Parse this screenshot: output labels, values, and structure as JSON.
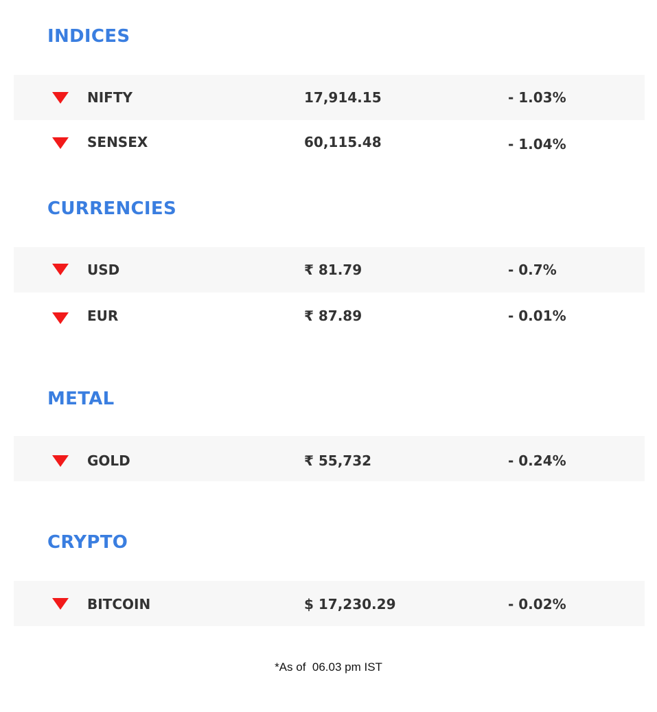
{
  "sections": [
    {
      "title": "INDICES",
      "rows": [
        {
          "name": "NIFTY",
          "value": "17,914.15",
          "change": "- 1.03%",
          "trend": "down-arrow-icon"
        },
        {
          "name": "SENSEX",
          "value": "60,115.48",
          "change": "- 1.04%",
          "trend": "down-arrow-icon"
        }
      ]
    },
    {
      "title": "CURRENCIES",
      "rows": [
        {
          "name": "USD",
          "value": "₹ 81.79",
          "change": "- 0.7%",
          "trend": "down-arrow-icon"
        },
        {
          "name": "EUR",
          "value": "₹ 87.89",
          "change": "- 0.01%",
          "trend": "down-arrow-icon"
        }
      ]
    },
    {
      "title": "METAL",
      "rows": [
        {
          "name": "GOLD",
          "value": "₹ 55,732",
          "change": "- 0.24%",
          "trend": "down-arrow-icon"
        }
      ]
    },
    {
      "title": "CRYPTO",
      "rows": [
        {
          "name": "BITCOIN",
          "value": "$ 17,230.29",
          "change": "- 0.02%",
          "trend": "down-arrow-icon"
        }
      ]
    }
  ],
  "footnote": "*As of  06.03 pm IST",
  "colors": {
    "section_title": "#3a7ee0",
    "down_arrow": "#f21a1a",
    "row_shade": "#f7f7f7",
    "cell_text": "#333333"
  }
}
